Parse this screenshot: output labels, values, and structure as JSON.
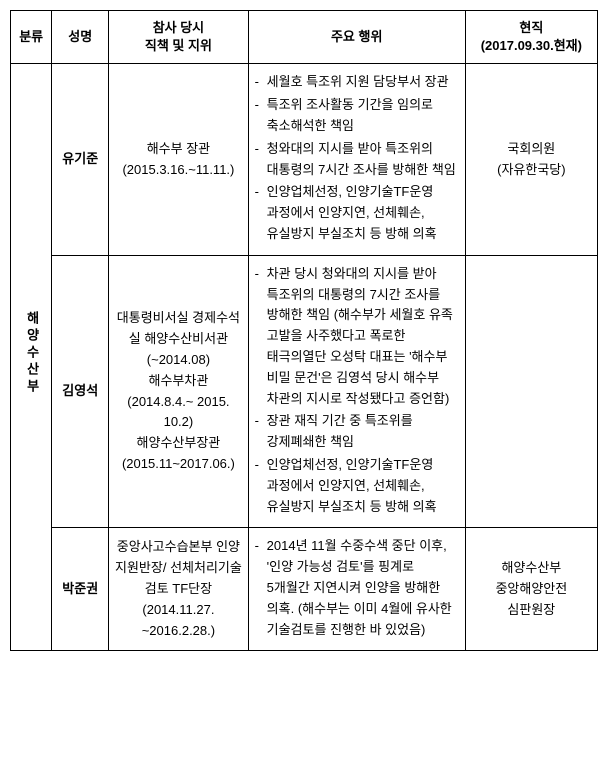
{
  "columns": {
    "c1": "분류",
    "c2": "성명",
    "c3_l1": "참사 당시",
    "c3_l2": "직책 및 지위",
    "c4": "주요 행위",
    "c5_l1": "현직",
    "c5_l2": "(2017.09.30.현재)"
  },
  "group": "해양수산부",
  "rows": [
    {
      "name": "유기준",
      "position": "해수부 장관\n(2015.3.16.~11.11.)",
      "acts": [
        "세월호 특조위 지원 담당부서 장관",
        "특조위 조사활동 기간을 임의로 축소해석한 책임",
        "청와대의 지시를 받아 특조위의 대통령의 7시간 조사를 방해한 책임",
        "인양업체선정, 인양기술TF운영 과정에서 인양지연, 선체훼손, 유실방지 부실조치 등 방해 의혹"
      ],
      "current": "국회의원\n(자유한국당)"
    },
    {
      "name": "김영석",
      "position": "대통령비서실 경제수석실 해양수산비서관\n(~2014.08)\n해수부차관\n(2014.8.4.~ 2015. 10.2)\n해양수산부장관\n(2015.11~2017.06.)",
      "acts": [
        "차관 당시 청와대의 지시를 받아 특조위의 대통령의 7시간 조사를 방해한 책임 (해수부가 세월호 유족 고발을 사주했다고 폭로한 태극의열단 오성탁 대표는 '해수부 비밀 문건'은 김영석 당시 해수부 차관의 지시로 작성됐다고 증언함)",
        "장관 재직 기간 중 특조위를 강제폐쇄한 책임",
        "인양업체선정, 인양기술TF운영 과정에서 인양지연, 선체훼손, 유실방지 부실조치 등 방해 의혹"
      ],
      "current": ""
    },
    {
      "name": "박준권",
      "position": "중앙사고수습본부 인양지원반장/ 선체처리기술검토 TF단장\n(2014.11.27. ~2016.2.28.)",
      "acts": [
        "2014년 11월 수중수색 중단 이후, '인양 가능성 검토'를 핑계로 5개월간 지연시켜 인양을 방해한 의혹. (해수부는 이미 4월에 유사한 기술검토를 진행한 바 있었음)"
      ],
      "current": "해양수산부\n중앙해양안전\n심판원장"
    }
  ]
}
